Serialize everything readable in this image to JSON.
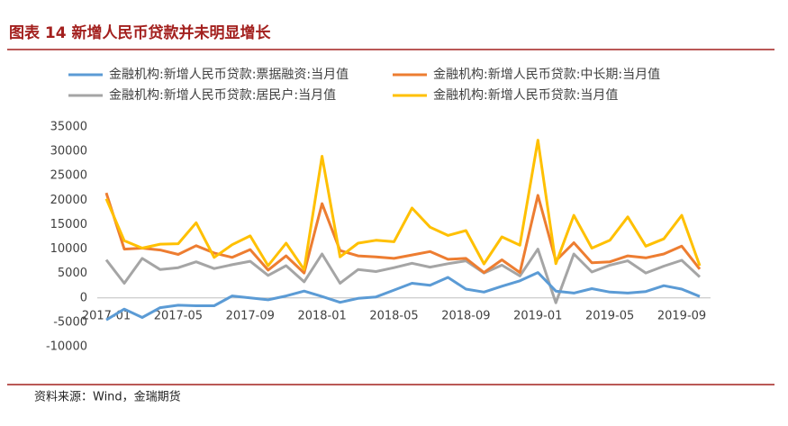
{
  "chart_data": {
    "type": "line",
    "title": "图表 14   新增人民币贷款并未明显增长",
    "source": "资料来源：Wind，金瑞期货",
    "categories": [
      "2017-01",
      null,
      null,
      null,
      "2017-05",
      null,
      null,
      null,
      "2017-09",
      null,
      null,
      null,
      "2018-01",
      null,
      null,
      null,
      "2018-05",
      null,
      null,
      null,
      "2018-09",
      null,
      null,
      null,
      "2019-01",
      null,
      null,
      null,
      "2019-05",
      null,
      null,
      null,
      "2019-09",
      null
    ],
    "series": [
      {
        "name": "金融机构:新增人民币贷款:票据融资:当月值",
        "color": "#5b9bd5",
        "values": [
          -4500,
          -2300,
          -4000,
          -2000,
          -1500,
          -1600,
          -1600,
          400,
          0,
          -400,
          400,
          1400,
          300,
          -900,
          -100,
          200,
          1600,
          3000,
          2600,
          4200,
          1800,
          1200,
          2400,
          3500,
          5200,
          1400,
          1000,
          1900,
          1200,
          1000,
          1300,
          2500,
          1800,
          300
        ]
      },
      {
        "name": "金融机构:新增人民币贷款:中长期:当月值",
        "color": "#ed7d31",
        "values": [
          21500,
          10000,
          10200,
          9800,
          8900,
          10700,
          9200,
          8300,
          9900,
          5700,
          8600,
          5100,
          19300,
          9700,
          8600,
          8400,
          8100,
          8800,
          9500,
          7900,
          8100,
          5200,
          7800,
          5200,
          21000,
          7600,
          11300,
          7200,
          7400,
          8600,
          8200,
          9000,
          10600,
          5900
        ]
      },
      {
        "name": "金融机构:新增人民币贷款:居民户:当月值",
        "color": "#a5a5a5",
        "values": [
          7800,
          3000,
          8100,
          5800,
          6200,
          7400,
          6000,
          6800,
          7500,
          4600,
          6600,
          3300,
          9000,
          3000,
          5800,
          5400,
          6200,
          7100,
          6300,
          7000,
          7600,
          5100,
          6700,
          4500,
          10000,
          -1000,
          9000,
          5300,
          6700,
          7600,
          5100,
          6500,
          7700,
          4300
        ]
      },
      {
        "name": "金融机构:新增人民币贷款:当月值",
        "color": "#ffc000",
        "values": [
          20300,
          11700,
          10200,
          11000,
          11100,
          15400,
          8300,
          10900,
          12700,
          6600,
          11200,
          5800,
          29000,
          8400,
          11200,
          11800,
          11500,
          18400,
          14500,
          12800,
          13800,
          6970,
          12500,
          10800,
          32300,
          7000,
          16900,
          10200,
          11800,
          16600,
          10600,
          12100,
          16900,
          6600
        ]
      }
    ],
    "ylim": [
      -10000,
      35000
    ],
    "yticks": [
      -10000,
      -5000,
      0,
      5000,
      10000,
      15000,
      20000,
      25000,
      30000,
      35000
    ],
    "grid": false
  }
}
